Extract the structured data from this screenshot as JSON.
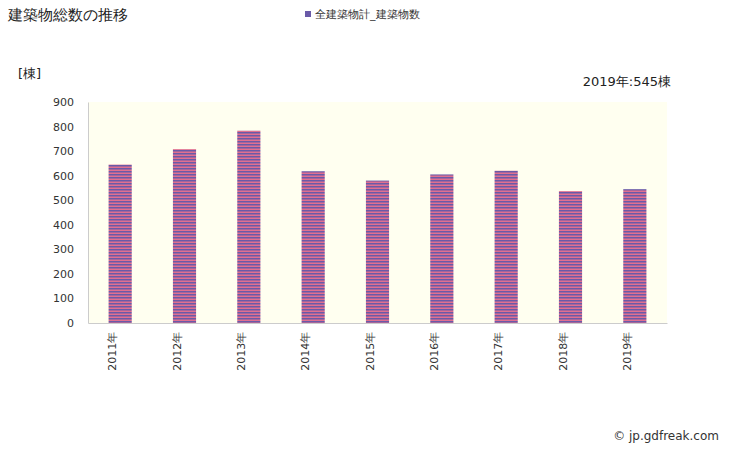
{
  "chart_data": {
    "type": "bar",
    "title": "建築物総数の推移",
    "categories": [
      "2011年",
      "2012年",
      "2013年",
      "2014年",
      "2015年",
      "2016年",
      "2017年",
      "2018年",
      "2019年"
    ],
    "series": [
      {
        "name": "全建築物計_建築物数",
        "color": "#6a5aa8",
        "values": [
          645,
          708,
          783,
          618,
          580,
          605,
          620,
          537,
          545
        ]
      }
    ],
    "y_label": "[棟]",
    "annotation": "2019年:545棟",
    "footer": "© jp.gdfreak.com",
    "ylim": [
      0,
      900
    ],
    "yticks": [
      0,
      100,
      200,
      300,
      400,
      500,
      600,
      700,
      800,
      900
    ],
    "grid": false,
    "legend": "top"
  }
}
